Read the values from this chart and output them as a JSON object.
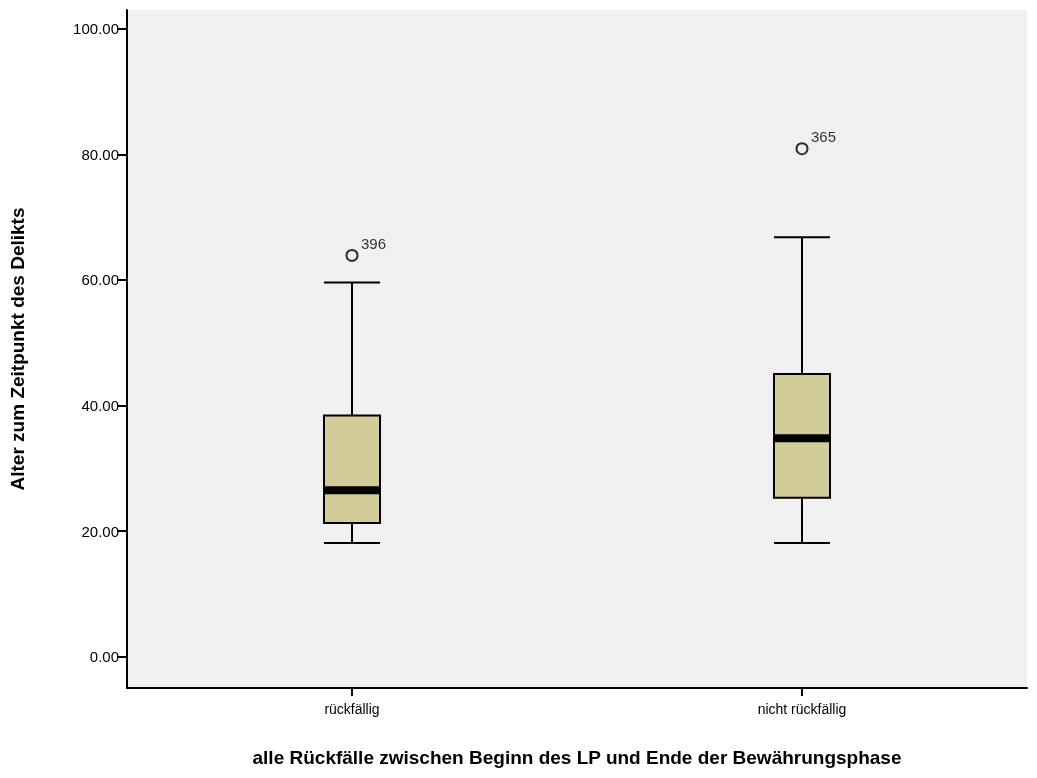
{
  "chart_data": {
    "type": "box",
    "xlabel": "alle Rückfälle zwischen Beginn des LP und Ende der Bewährungsphase",
    "ylabel": "Alter zum Zeitpunkt des Delikts",
    "categories": [
      "rückfällig",
      "nicht rückfällig"
    ],
    "color": "#d2cd98",
    "boxes": [
      {
        "low": 18.1,
        "q1": 21.3,
        "median": 26.5,
        "q3": 38.4,
        "high": 59.6,
        "outliers": [
          63.9
        ]
      },
      {
        "low": 18.1,
        "q1": 25.3,
        "median": 34.8,
        "q3": 45.0,
        "high": 66.8,
        "outliers": [
          80.9
        ]
      }
    ],
    "annotations": [
      "396",
      "365"
    ],
    "ylim": [
      -5,
      103
    ],
    "yticks": [
      {
        "value": 0,
        "label": "0.00"
      },
      {
        "value": 20,
        "label": "20.00"
      },
      {
        "value": 40,
        "label": "40.00"
      },
      {
        "value": 60,
        "label": "60.00"
      },
      {
        "value": 80,
        "label": "80.00"
      },
      {
        "value": 100,
        "label": "100.00"
      }
    ]
  }
}
